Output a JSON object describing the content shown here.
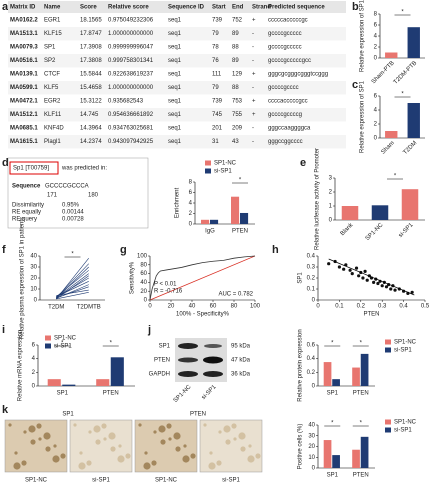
{
  "panel_labels": [
    "a",
    "b",
    "c",
    "d",
    "e",
    "f",
    "g",
    "h",
    "i",
    "j",
    "k"
  ],
  "table": {
    "columns": [
      "Matrix ID",
      "Name",
      "Score",
      "Relative score",
      "Sequence ID",
      "Start",
      "End",
      "Strand",
      "Predicted sequence"
    ],
    "rows": [
      [
        "MA0162.2",
        "EGR1",
        "18.1565",
        "0.975049232306",
        "seq1",
        "739",
        "752",
        "+",
        "cccccacccccgc"
      ],
      [
        "MA1513.1",
        "KLF15",
        "17.8747",
        "1.000000000000",
        "seq1",
        "79",
        "89",
        "-",
        "gccccgccccc"
      ],
      [
        "MA0079.3",
        "SP1",
        "17.3908",
        "0.999999996047",
        "seq1",
        "78",
        "88",
        "-",
        "gccccgccccc"
      ],
      [
        "MA0516.1",
        "SP2",
        "17.3808",
        "0.999758301341",
        "seq1",
        "76",
        "89",
        "-",
        "gccccgcccccgcc"
      ],
      [
        "MA0139.1",
        "CTCF",
        "15.5844",
        "0.922638619237",
        "seq1",
        "111",
        "129",
        "+",
        "gggcgcgggcgggtccggg"
      ],
      [
        "MA0599.1",
        "KLF5",
        "15.4658",
        "1.000000000000",
        "seq1",
        "79",
        "88",
        "-",
        "gccccgcccc"
      ],
      [
        "MA0472.1",
        "EGR2",
        "15.3122",
        "0.935682543",
        "seq1",
        "739",
        "753",
        "+",
        "ccccacccccgcc"
      ],
      [
        "MA1512.1",
        "KLF11",
        "14.745",
        "0.954636661892",
        "seq1",
        "745",
        "755",
        "+",
        "gccccgccccg"
      ],
      [
        "MA0685.1",
        "KNF4D",
        "14.3964",
        "0.934763025681",
        "seq1",
        "201",
        "209",
        "-",
        "gggccaaggggca"
      ],
      [
        "MA1615.1",
        "Plagl1",
        "14.2374",
        "0.943097942925",
        "seq1",
        "31",
        "43",
        "-",
        "gggccggcccc"
      ]
    ]
  },
  "motif": {
    "id": "Sp1 [T00759]",
    "text": "was predicted in:",
    "sequence_label": "Sequence",
    "sequence": "GCCCCGCCCA",
    "start": "171",
    "end": "180",
    "stats": [
      [
        "Dissimilarity",
        "0.95%"
      ],
      [
        "RE equally",
        "0.00144"
      ],
      [
        "RE query",
        "0.00728"
      ]
    ]
  },
  "blot": {
    "bands": [
      "SP1",
      "PTEN",
      "GAPDH"
    ],
    "sizes": [
      "95 kDa",
      "47 kDa",
      "36 kDa"
    ],
    "lanes": [
      "SP1-NC",
      "si-SP1"
    ]
  },
  "ihc": {
    "columns": [
      "SP1",
      "PTEN"
    ],
    "lanes": [
      "SP1-NC",
      "si-SP1",
      "SP1-NC",
      "si-SP1"
    ]
  },
  "chart_data": [
    {
      "type": "bar",
      "ylabel": "Relative expression of SP1",
      "categories": [
        "Sham-PTB",
        "T2DM-PTB"
      ],
      "values": [
        1,
        5.6
      ],
      "colors": [
        "#e8756f",
        "#1f3b73"
      ],
      "ylim": [
        0,
        8
      ],
      "yticks": [
        0,
        2,
        4,
        6,
        8
      ],
      "annotations": [
        "*"
      ]
    },
    {
      "type": "bar",
      "ylabel": "Relative expression of SP1",
      "categories": [
        "Sham",
        "T2DM"
      ],
      "values": [
        1,
        5
      ],
      "colors": [
        "#e8756f",
        "#1f3b73"
      ],
      "ylim": [
        0,
        6
      ],
      "yticks": [
        0,
        2,
        4,
        6
      ],
      "annotations": [
        "*"
      ]
    },
    {
      "type": "grouped_bar",
      "ylabel": "Enrichment",
      "categories": [
        "IgG",
        "PTEN"
      ],
      "series": [
        {
          "name": "SP1-NC",
          "color": "#e8756f",
          "values": [
            0.8,
            5.2
          ]
        },
        {
          "name": "si-SP1",
          "color": "#1f3b73",
          "values": [
            0.8,
            2.1
          ]
        }
      ],
      "ylim": [
        0,
        8
      ],
      "yticks": [
        0,
        2,
        4,
        6,
        8
      ],
      "annotations": [
        "*"
      ]
    },
    {
      "type": "bar",
      "ylabel": "Relative luciferase activity of Promoter",
      "categories": [
        "Blank",
        "SP1-NC",
        "si-SP1"
      ],
      "values": [
        1,
        1.05,
        2.2
      ],
      "colors": [
        "#e8756f",
        "#1f3b73",
        "#e8756f"
      ],
      "ylim": [
        0,
        3
      ],
      "yticks": [
        0,
        1,
        2,
        3
      ],
      "annotations": [
        "*"
      ]
    },
    {
      "type": "paired",
      "ylabel": "Relative plasma expression of SP1 in patients",
      "categories": [
        "T2DM",
        "T2DMTB"
      ],
      "values": [
        [
          1,
          38
        ],
        [
          2,
          33
        ],
        [
          1.5,
          30
        ],
        [
          3,
          27
        ],
        [
          2,
          24
        ],
        [
          1,
          22
        ],
        [
          2.5,
          20
        ],
        [
          3,
          17
        ],
        [
          1.5,
          14
        ],
        [
          2,
          12
        ],
        [
          4,
          9
        ],
        [
          1,
          7
        ]
      ],
      "color": "#1f3b73",
      "ylim": [
        0,
        40
      ],
      "yticks": [
        0,
        10,
        20,
        30,
        40
      ],
      "annotations": [
        "*"
      ]
    },
    {
      "type": "line",
      "xlabel": "100% - Specificity%",
      "ylabel": "Sensitivity%",
      "x": [
        0,
        2,
        4,
        6,
        8,
        10,
        15,
        20,
        25,
        30,
        40,
        50,
        60,
        70,
        80,
        90,
        100
      ],
      "values": [
        0,
        25,
        40,
        55,
        62,
        66,
        68,
        70,
        72,
        74,
        80,
        85,
        88,
        90,
        95,
        98,
        100
      ],
      "color": "#333",
      "ref_color": "#d93025",
      "xlim": [
        0,
        100
      ],
      "ylim": [
        0,
        100
      ],
      "xticks": [
        0,
        20,
        40,
        60,
        80,
        100
      ],
      "yticks": [
        0,
        20,
        40,
        60,
        80,
        100
      ],
      "annotations": [
        "AUC = 0.782",
        "P < 0.01",
        "R = -0.716"
      ]
    },
    {
      "type": "scatter",
      "xlabel": "PTEN",
      "ylabel": "SP1",
      "x": [
        0.05,
        0.08,
        0.1,
        0.12,
        0.13,
        0.15,
        0.16,
        0.18,
        0.19,
        0.2,
        0.21,
        0.22,
        0.23,
        0.24,
        0.25,
        0.26,
        0.27,
        0.28,
        0.29,
        0.3,
        0.31,
        0.32,
        0.33,
        0.34,
        0.35,
        0.36,
        0.38,
        0.4,
        0.42,
        0.44
      ],
      "values": [
        0.33,
        0.35,
        0.3,
        0.28,
        0.32,
        0.27,
        0.24,
        0.29,
        0.22,
        0.25,
        0.2,
        0.26,
        0.18,
        0.22,
        0.2,
        0.16,
        0.19,
        0.15,
        0.17,
        0.13,
        0.16,
        0.12,
        0.14,
        0.1,
        0.13,
        0.09,
        0.1,
        0.08,
        0.06,
        0.07
      ],
      "color": "#111",
      "xlim": [
        0,
        0.5
      ],
      "ylim": [
        0,
        0.4
      ],
      "xticks": [
        0,
        0.1,
        0.2,
        0.3,
        0.4,
        0.5
      ],
      "yticks": [
        0,
        0.1,
        0.2,
        0.3,
        0.4
      ]
    },
    {
      "type": "grouped_bar",
      "ylabel": "Relative mRNA expression",
      "categories": [
        "SP1",
        "PTEN"
      ],
      "series": [
        {
          "name": "SP1-NC",
          "color": "#e8756f",
          "values": [
            1,
            1
          ]
        },
        {
          "name": "si-SP1",
          "color": "#1f3b73",
          "values": [
            0.2,
            4.2
          ]
        }
      ],
      "ylim": [
        0,
        6
      ],
      "yticks": [
        0,
        2,
        4,
        6
      ],
      "annotations": [
        "*",
        "*"
      ]
    },
    {
      "type": "grouped_bar",
      "ylabel": "Relative protein expression",
      "categories": [
        "SP1",
        "PTEN"
      ],
      "series": [
        {
          "name": "SP1-NC",
          "color": "#e8756f",
          "values": [
            0.35,
            0.27
          ]
        },
        {
          "name": "si-SP1",
          "color": "#1f3b73",
          "values": [
            0.1,
            0.47
          ]
        }
      ],
      "ylim": [
        0,
        0.6
      ],
      "yticks": [
        0,
        0.2,
        0.4,
        0.6
      ],
      "annotations": [
        "*",
        "*"
      ]
    },
    {
      "type": "grouped_bar",
      "ylabel": "Positive cells (%)",
      "categories": [
        "SP1",
        "PTEN"
      ],
      "series": [
        {
          "name": "SP1-NC",
          "color": "#e8756f",
          "values": [
            26,
            17
          ]
        },
        {
          "name": "si-SP1",
          "color": "#1f3b73",
          "values": [
            12,
            29
          ]
        }
      ],
      "ylim": [
        0,
        40
      ],
      "yticks": [
        0,
        10,
        20,
        30,
        40
      ],
      "annotations": [
        "*",
        "*"
      ]
    }
  ]
}
